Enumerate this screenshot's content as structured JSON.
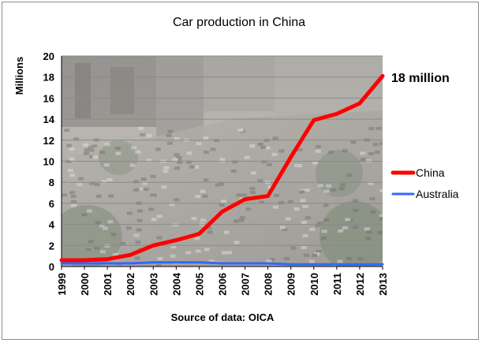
{
  "chart_data": {
    "type": "line",
    "title": "Car production in China",
    "ylabel": "Millions",
    "xlabel": "Source of data: OICA",
    "x": [
      "1999",
      "2000",
      "2001",
      "2002",
      "2003",
      "2004",
      "2005",
      "2006",
      "2007",
      "2008",
      "2009",
      "2010",
      "2011",
      "2012",
      "2013"
    ],
    "ylim": [
      0,
      20
    ],
    "yticks": [
      "0",
      "2",
      "4",
      "6",
      "8",
      "10",
      "12",
      "14",
      "16",
      "18",
      "20"
    ],
    "grid": true,
    "legend_position": "right",
    "series": [
      {
        "name": "China",
        "color": "#ff0000",
        "values": [
          0.6,
          0.6,
          0.7,
          1.1,
          2.0,
          2.5,
          3.1,
          5.2,
          6.4,
          6.7,
          10.4,
          13.9,
          14.5,
          15.5,
          18.1
        ]
      },
      {
        "name": "Australia",
        "color": "#3366ff",
        "values": [
          0.3,
          0.3,
          0.3,
          0.3,
          0.4,
          0.4,
          0.4,
          0.3,
          0.3,
          0.3,
          0.2,
          0.2,
          0.2,
          0.2,
          0.2
        ]
      }
    ],
    "annotations": [
      {
        "text": "18 million"
      }
    ],
    "background": "photograph of dense car traffic in a Chinese city"
  }
}
